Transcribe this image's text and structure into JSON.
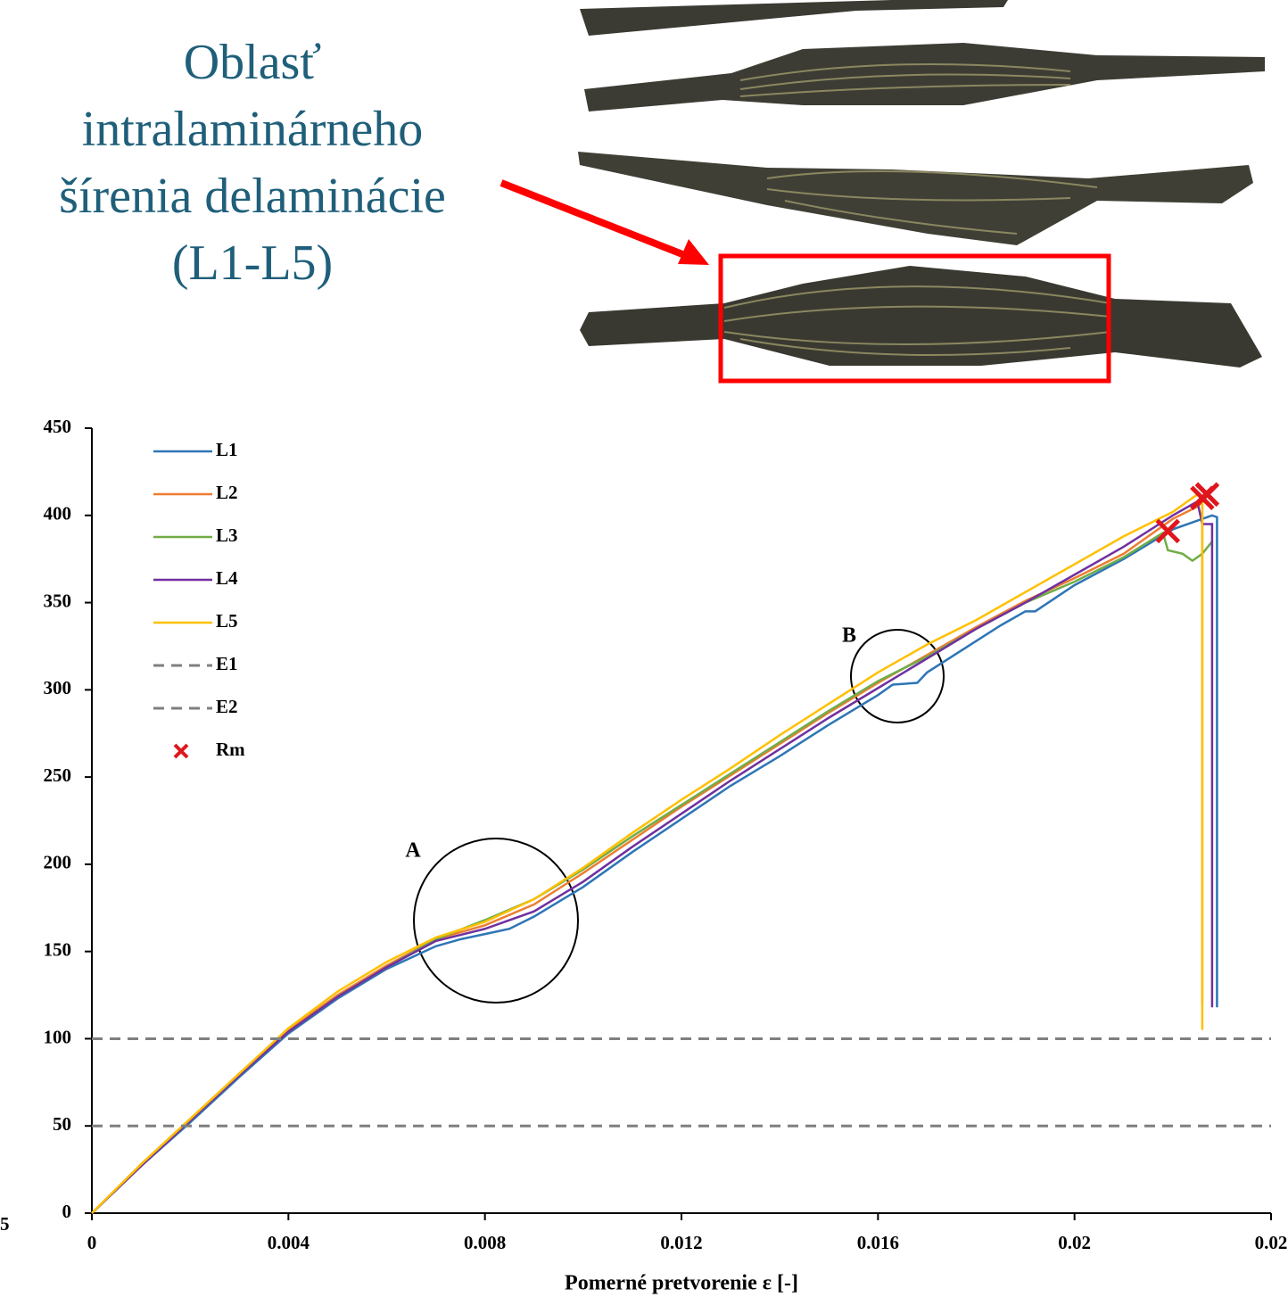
{
  "photo_callout": {
    "lines": [
      "Oblasť",
      "intralaminárneho",
      "šírenia delaminácie",
      "(L1-L5)"
    ]
  },
  "left_fragment": "5",
  "chart_data": {
    "type": "line",
    "xlabel": "Pomerné pretvorenie ε [-]",
    "xlim": [
      0,
      0.024
    ],
    "xticks": [
      0,
      0.004,
      0.008,
      0.012,
      0.016,
      0.02,
      {
        "value": 0.024,
        "label": "0.02"
      }
    ],
    "ylim": [
      0,
      450
    ],
    "yticks": [
      0,
      50,
      100,
      150,
      200,
      250,
      300,
      350,
      400,
      450
    ],
    "legend": "upper left",
    "annotations": [
      {
        "text": "A"
      },
      {
        "text": "B"
      }
    ],
    "series": [
      {
        "name": "L1",
        "color": "#2e75b6",
        "style": "solid",
        "x": [
          0,
          0.001,
          0.002,
          0.003,
          0.004,
          0.005,
          0.006,
          0.007,
          0.0075,
          0.008,
          0.0085,
          0.009,
          0.01,
          0.011,
          0.012,
          0.013,
          0.014,
          0.015,
          0.016,
          0.0163,
          0.0168,
          0.017,
          0.018,
          0.0185,
          0.019,
          0.0192,
          0.02,
          0.021,
          0.022,
          0.0228,
          0.0229,
          0.0229
        ],
        "values": [
          0,
          27,
          52,
          78,
          103,
          123,
          140,
          153,
          157,
          160,
          163,
          170,
          187,
          207,
          226,
          245,
          262,
          280,
          297,
          303,
          304,
          310,
          328,
          337,
          345,
          345,
          360,
          375,
          392,
          400,
          399,
          118
        ]
      },
      {
        "name": "L2",
        "color": "#ed7d31",
        "style": "solid",
        "x": [
          0,
          0.001,
          0.002,
          0.003,
          0.004,
          0.005,
          0.006,
          0.007,
          0.008,
          0.009,
          0.01,
          0.011,
          0.012,
          0.013,
          0.014,
          0.015,
          0.016,
          0.017,
          0.018,
          0.019,
          0.02,
          0.021,
          0.022,
          0.0225,
          0.0226,
          0.0226
        ],
        "values": [
          0,
          28,
          54,
          80,
          105,
          125,
          142,
          157,
          165,
          177,
          195,
          214,
          233,
          251,
          269,
          287,
          304,
          320,
          336,
          351,
          364,
          378,
          398,
          405,
          408,
          120
        ]
      },
      {
        "name": "L3",
        "color": "#70ad47",
        "style": "solid",
        "x": [
          0,
          0.001,
          0.002,
          0.003,
          0.004,
          0.005,
          0.006,
          0.007,
          0.008,
          0.009,
          0.01,
          0.011,
          0.012,
          0.013,
          0.014,
          0.015,
          0.016,
          0.017,
          0.018,
          0.019,
          0.02,
          0.021,
          0.0218,
          0.0219,
          0.0222,
          0.0224,
          0.0226,
          0.0228
        ],
        "values": [
          0,
          27,
          53,
          79,
          104,
          124,
          141,
          157,
          168,
          180,
          197,
          216,
          234,
          252,
          270,
          288,
          305,
          319,
          335,
          350,
          362,
          376,
          390,
          380,
          378,
          374,
          378,
          385
        ]
      },
      {
        "name": "L4",
        "color": "#7030a0",
        "style": "solid",
        "x": [
          0,
          0.001,
          0.002,
          0.003,
          0.004,
          0.005,
          0.006,
          0.007,
          0.008,
          0.009,
          0.01,
          0.011,
          0.012,
          0.013,
          0.014,
          0.015,
          0.016,
          0.017,
          0.018,
          0.019,
          0.02,
          0.021,
          0.022,
          0.0225,
          0.0226,
          0.0228,
          0.0228
        ],
        "values": [
          0,
          27,
          53,
          79,
          104,
          124,
          141,
          156,
          163,
          173,
          190,
          210,
          229,
          248,
          266,
          284,
          301,
          318,
          335,
          350,
          366,
          382,
          400,
          408,
          395,
          395,
          118
        ]
      },
      {
        "name": "L5",
        "color": "#ffc000",
        "style": "solid",
        "x": [
          0,
          0.001,
          0.002,
          0.003,
          0.004,
          0.005,
          0.006,
          0.007,
          0.008,
          0.009,
          0.01,
          0.011,
          0.012,
          0.013,
          0.014,
          0.015,
          0.016,
          0.017,
          0.018,
          0.019,
          0.02,
          0.021,
          0.022,
          0.0225,
          0.0226,
          0.0226
        ],
        "values": [
          0,
          28,
          54,
          80,
          106,
          127,
          144,
          158,
          167,
          180,
          198,
          218,
          237,
          255,
          274,
          292,
          310,
          326,
          340,
          356,
          372,
          388,
          402,
          412,
          410,
          105
        ]
      },
      {
        "name": "E1",
        "color": "#7f7f7f",
        "style": "dashed",
        "x": [
          0,
          0.024
        ],
        "values": [
          100,
          100
        ]
      },
      {
        "name": "E2",
        "color": "#7f7f7f",
        "style": "dashed",
        "x": [
          0,
          0.024
        ],
        "values": [
          50,
          50
        ]
      },
      {
        "name": "Rm",
        "color": "#e0161c",
        "style": "marker",
        "x": [
          0.0219,
          0.0226,
          0.0227
        ],
        "values": [
          391,
          410,
          412
        ]
      }
    ]
  }
}
